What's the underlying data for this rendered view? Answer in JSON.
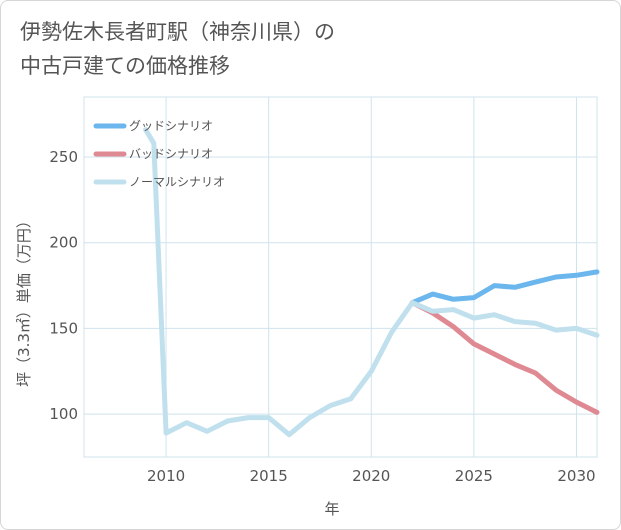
{
  "title_line1": "伊勢佐木長者町駅（神奈川県）の",
  "title_line2": "中古戸建ての価格推移",
  "chart_data": {
    "type": "line",
    "title": "伊勢佐木長者町駅（神奈川県）の中古戸建ての価格推移",
    "xlabel": "年",
    "ylabel": "坪（3.3㎡）単価（万円）",
    "xlim": [
      2006,
      2031
    ],
    "ylim": [
      75,
      285
    ],
    "x_ticks": [
      2010,
      2015,
      2020,
      2025,
      2030
    ],
    "y_ticks": [
      100,
      150,
      200,
      250
    ],
    "grid": true,
    "legend_position": "top-left",
    "series": [
      {
        "name": "グッドシナリオ",
        "color": "#6cb6ee",
        "x": [
          2022,
          2023,
          2024,
          2025,
          2026,
          2027,
          2028,
          2029,
          2030,
          2031
        ],
        "values": [
          165,
          170,
          167,
          168,
          175,
          174,
          177,
          180,
          181,
          183
        ]
      },
      {
        "name": "バッドシナリオ",
        "color": "#df8a93",
        "x": [
          2022,
          2023,
          2024,
          2025,
          2026,
          2027,
          2028,
          2029,
          2030,
          2031
        ],
        "values": [
          165,
          159,
          151,
          141,
          135,
          129,
          124,
          114,
          107,
          101
        ]
      },
      {
        "name": "ノーマルシナリオ",
        "color": "#c0e0ee",
        "x": [
          2009,
          2009.4,
          2010,
          2011,
          2012,
          2013,
          2014,
          2015,
          2016,
          2017,
          2018,
          2019,
          2020,
          2021,
          2022,
          2023,
          2024,
          2025,
          2026,
          2027,
          2028,
          2029,
          2030,
          2031
        ],
        "values": [
          266,
          258,
          89,
          95,
          90,
          96,
          98,
          98,
          88,
          98,
          105,
          109,
          125,
          148,
          165,
          160,
          161,
          156,
          158,
          154,
          153,
          149,
          150,
          146
        ]
      }
    ]
  }
}
